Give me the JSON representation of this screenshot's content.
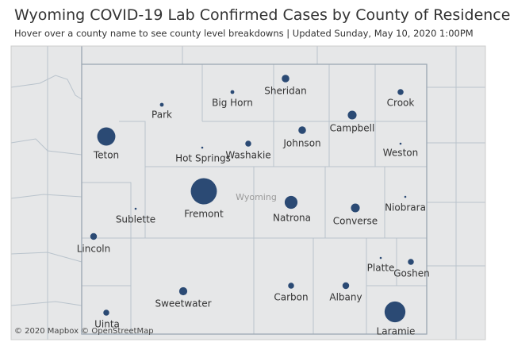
{
  "header": {
    "title": "Wyoming COVID-19 Lab Confirmed Cases by County of Residence",
    "subtitle": "Hover over a county name to see county level breakdowns | Updated Sunday, May 10, 2020 1:00PM"
  },
  "map": {
    "region_label": "Wyoming",
    "attribution": "© 2020 Mapbox © OpenStreetMap",
    "counties": [
      {
        "name": "Teton",
        "cases": 85
      },
      {
        "name": "Park",
        "cases": 1
      },
      {
        "name": "Big Horn",
        "cases": 1
      },
      {
        "name": "Sheridan",
        "cases": 10
      },
      {
        "name": "Crook",
        "cases": 5
      },
      {
        "name": "Campbell",
        "cases": 15
      },
      {
        "name": "Johnson",
        "cases": 10
      },
      {
        "name": "Washakie",
        "cases": 5
      },
      {
        "name": "Hot Springs",
        "cases": 0
      },
      {
        "name": "Weston",
        "cases": 0
      },
      {
        "name": "Fremont",
        "cases": 190
      },
      {
        "name": "Natrona",
        "cases": 38
      },
      {
        "name": "Converse",
        "cases": 15
      },
      {
        "name": "Niobrara",
        "cases": 0
      },
      {
        "name": "Sublette",
        "cases": 0
      },
      {
        "name": "Lincoln",
        "cases": 7
      },
      {
        "name": "Platte",
        "cases": 0
      },
      {
        "name": "Goshen",
        "cases": 5
      },
      {
        "name": "Sweetwater",
        "cases": 12
      },
      {
        "name": "Carbon",
        "cases": 5
      },
      {
        "name": "Albany",
        "cases": 7
      },
      {
        "name": "Laramie",
        "cases": 116
      },
      {
        "name": "Uinta",
        "cases": 5
      }
    ]
  }
}
